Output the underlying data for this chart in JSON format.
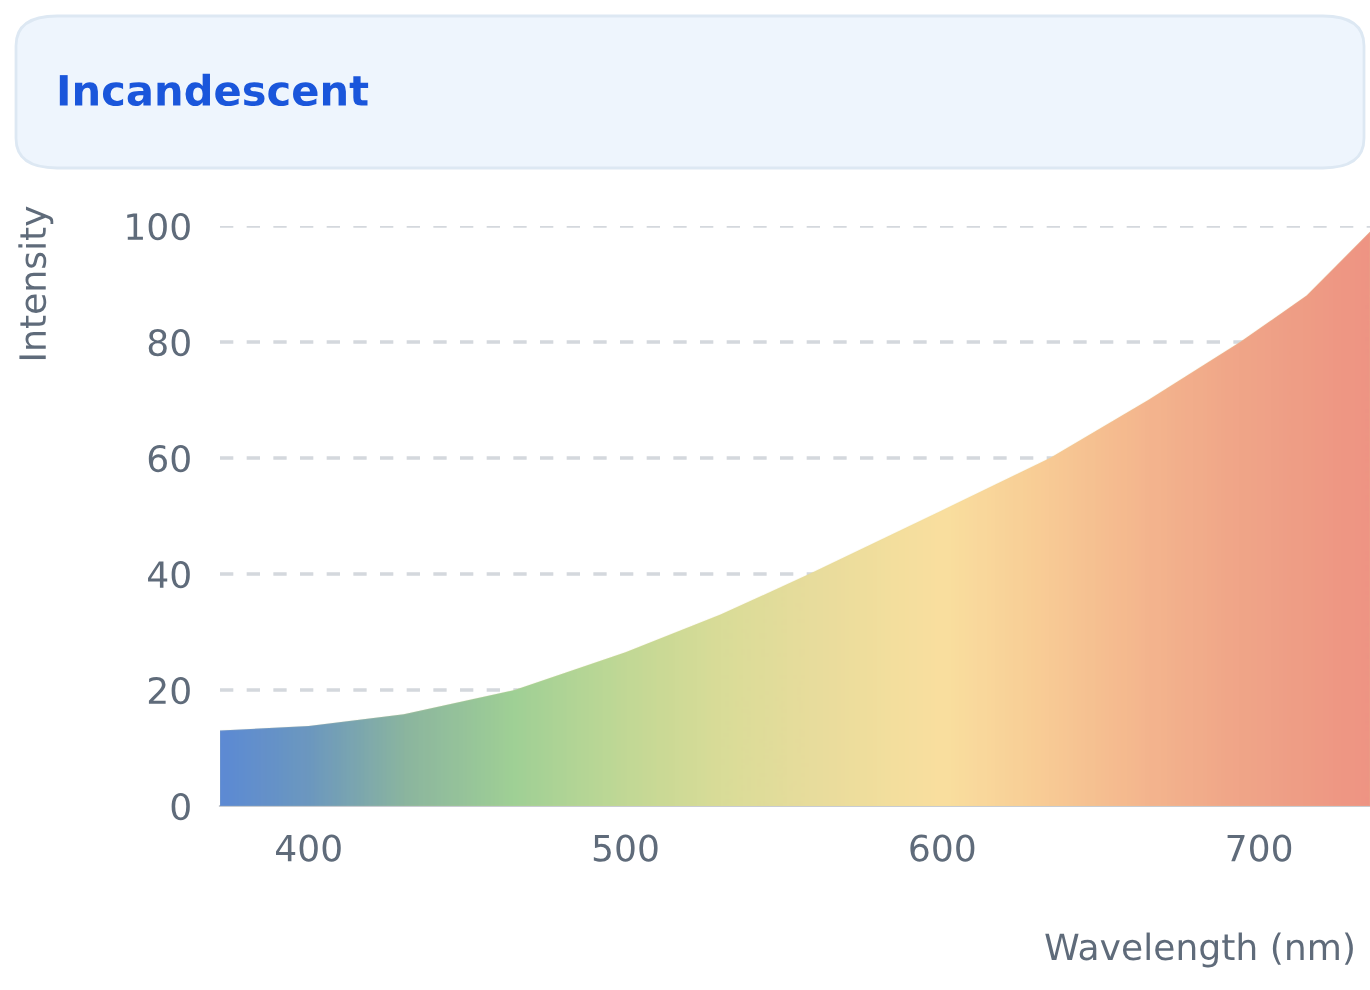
{
  "chart_data": {
    "type": "area",
    "title": "Incandescent",
    "xlabel": "Wavelength (nm)",
    "ylabel": "Intensity",
    "x": [
      372,
      400,
      430,
      465,
      500,
      530,
      558,
      600,
      634,
      665,
      694,
      715,
      735
    ],
    "series": [
      {
        "values": [
          13,
          13.8,
          15.8,
          20,
          26.5,
          33,
          40,
          51,
          60,
          70,
          80,
          88,
          99
        ],
        "colors": [
          "#4a7fdc",
          "#5c8fc4",
          "#7fb0a0",
          "#97cf95",
          "#bdd894",
          "#d8dc98",
          "#e8dc9c",
          "#fde0a0",
          "#fbc894",
          "#f6b08c",
          "#f29e86",
          "#f09482",
          "#ef8a80"
        ]
      }
    ],
    "xlim": [
      372,
      735
    ],
    "ylim": [
      0,
      100
    ],
    "xticks": [
      400,
      500,
      600,
      700
    ],
    "yticks": [
      0,
      20,
      40,
      60,
      80,
      100
    ],
    "grid": "y",
    "legend": false
  }
}
